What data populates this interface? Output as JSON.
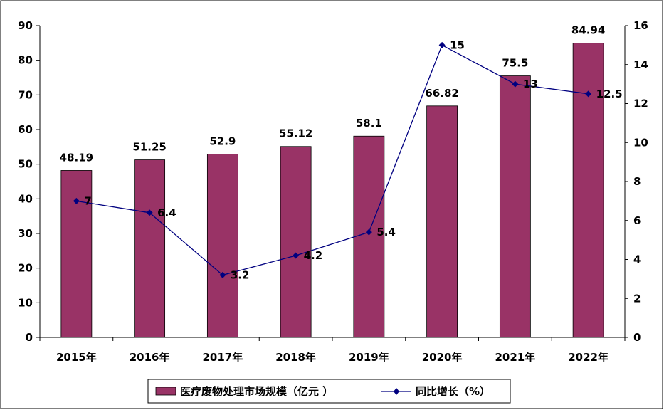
{
  "chart_data": {
    "type": "bar",
    "categories": [
      "2015年",
      "2016年",
      "2017年",
      "2018年",
      "2019年",
      "2020年",
      "2021年",
      "2022年"
    ],
    "series": [
      {
        "name": "医疗废物处理市场规模（亿元 ）",
        "type": "bar",
        "axis": "left",
        "color": "#993366",
        "values": [
          48.19,
          51.25,
          52.9,
          55.12,
          58.1,
          66.82,
          75.5,
          84.94
        ],
        "labels": [
          "48.19",
          "51.25",
          "52.9",
          "55.12",
          "58.1",
          "66.82",
          "75.5",
          "84.94"
        ]
      },
      {
        "name": "同比增长（%）",
        "type": "line",
        "axis": "right",
        "color": "#000080",
        "values": [
          7,
          6.4,
          3.2,
          4.2,
          5.4,
          15,
          13,
          12.5
        ],
        "labels": [
          "7",
          "6.4",
          "3.2",
          "4.2",
          "5.4",
          "15",
          "13",
          "12.5"
        ]
      }
    ],
    "y_left": {
      "ylim": [
        0,
        90
      ],
      "ticks": [
        "0",
        "10",
        "20",
        "30",
        "40",
        "50",
        "60",
        "70",
        "80",
        "90"
      ]
    },
    "y_right": {
      "ylim": [
        0,
        16
      ],
      "ticks": [
        "0",
        "2",
        "4",
        "6",
        "8",
        "10",
        "12",
        "14",
        "16"
      ]
    },
    "grid": false,
    "legend_position": "bottom"
  }
}
